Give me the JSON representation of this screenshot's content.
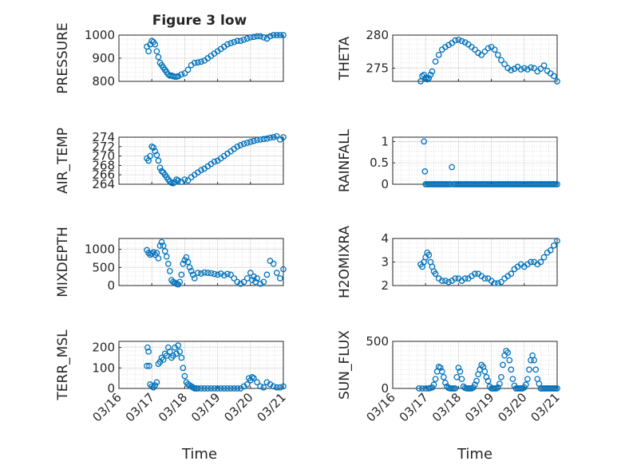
{
  "figure": {
    "title": "Figure 3 low",
    "xlabel": "Time",
    "marker_color": "#0072bd"
  },
  "chart_data": [
    {
      "type": "scatter",
      "name": "pressure-chart",
      "ylabel": "PRESSURE",
      "xlim": [
        0,
        5
      ],
      "ylim": [
        800,
        1000
      ],
      "yticks": [
        800,
        900,
        1000
      ],
      "ytick_labels": [
        "800",
        "900",
        "1000"
      ],
      "xticks": [
        0,
        1,
        2,
        3,
        4,
        5
      ],
      "xtick_labels": [],
      "grid": true,
      "x": [
        0.85,
        0.9,
        0.95,
        1.0,
        1.05,
        1.1,
        1.15,
        1.2,
        1.25,
        1.3,
        1.35,
        1.4,
        1.45,
        1.5,
        1.55,
        1.6,
        1.65,
        1.7,
        1.75,
        1.8,
        1.9,
        2.0,
        2.1,
        2.2,
        2.3,
        2.4,
        2.5,
        2.6,
        2.7,
        2.8,
        2.9,
        3.0,
        3.1,
        3.2,
        3.3,
        3.4,
        3.5,
        3.6,
        3.7,
        3.8,
        3.9,
        4.0,
        4.1,
        4.2,
        4.3,
        4.4,
        4.5,
        4.6,
        4.7,
        4.8,
        4.9,
        5.0
      ],
      "y": [
        950,
        930,
        960,
        975,
        970,
        960,
        930,
        905,
        880,
        870,
        860,
        850,
        840,
        830,
        825,
        825,
        822,
        820,
        820,
        822,
        830,
        835,
        850,
        870,
        880,
        882,
        885,
        890,
        900,
        910,
        920,
        930,
        940,
        950,
        960,
        965,
        970,
        975,
        975,
        980,
        985,
        990,
        992,
        995,
        995,
        990,
        985,
        995,
        1000,
        1000,
        1000,
        1000
      ]
    },
    {
      "type": "scatter",
      "name": "theta-chart",
      "ylabel": "THETA",
      "xlim": [
        0,
        5
      ],
      "ylim": [
        273,
        280
      ],
      "yticks": [
        275,
        280
      ],
      "ytick_labels": [
        "275",
        "280"
      ],
      "xticks": [
        0,
        1,
        2,
        3,
        4,
        5
      ],
      "xtick_labels": [],
      "grid": true,
      "x": [
        0.85,
        0.9,
        0.95,
        1.0,
        1.05,
        1.1,
        1.15,
        1.2,
        1.3,
        1.4,
        1.5,
        1.6,
        1.7,
        1.8,
        1.9,
        2.0,
        2.1,
        2.2,
        2.3,
        2.4,
        2.5,
        2.6,
        2.7,
        2.8,
        2.9,
        3.0,
        3.1,
        3.2,
        3.3,
        3.4,
        3.5,
        3.6,
        3.7,
        3.8,
        3.9,
        4.0,
        4.1,
        4.2,
        4.3,
        4.4,
        4.5,
        4.6,
        4.7,
        4.8,
        4.9,
        5.0
      ],
      "y": [
        273.0,
        273.8,
        274.0,
        273.5,
        273.3,
        273.5,
        274.0,
        274.5,
        276.0,
        277.0,
        277.8,
        278.2,
        278.5,
        278.8,
        279.2,
        279.3,
        279.1,
        278.9,
        278.6,
        278.2,
        277.8,
        277.3,
        277.0,
        277.5,
        278.0,
        278.2,
        277.8,
        277.0,
        276.2,
        275.6,
        275.0,
        274.7,
        274.9,
        275.2,
        274.8,
        275.0,
        274.8,
        275.1,
        275.0,
        274.5,
        274.9,
        275.4,
        274.6,
        274.2,
        273.8,
        273.0
      ]
    },
    {
      "type": "scatter",
      "name": "air-temp-chart",
      "ylabel": "AIR_TEMP",
      "xlim": [
        0,
        5
      ],
      "ylim": [
        264,
        274
      ],
      "yticks": [
        264,
        266,
        268,
        270,
        272,
        274
      ],
      "ytick_labels": [
        "264",
        "266",
        "268",
        "270",
        "272",
        "274"
      ],
      "xticks": [
        0,
        1,
        2,
        3,
        4,
        5
      ],
      "xtick_labels": [],
      "grid": true,
      "x": [
        0.85,
        0.9,
        0.95,
        1.0,
        1.05,
        1.1,
        1.15,
        1.2,
        1.25,
        1.3,
        1.35,
        1.4,
        1.45,
        1.5,
        1.55,
        1.6,
        1.65,
        1.7,
        1.75,
        1.8,
        1.9,
        2.0,
        2.1,
        2.2,
        2.3,
        2.4,
        2.5,
        2.6,
        2.7,
        2.8,
        2.9,
        3.0,
        3.1,
        3.2,
        3.3,
        3.4,
        3.5,
        3.6,
        3.7,
        3.8,
        3.9,
        4.0,
        4.1,
        4.2,
        4.3,
        4.4,
        4.5,
        4.6,
        4.7,
        4.8,
        4.9,
        5.0
      ],
      "y": [
        269.5,
        269.0,
        270.0,
        272.0,
        271.8,
        271.0,
        270.2,
        269.0,
        267.5,
        266.8,
        266.5,
        266.0,
        265.5,
        265.0,
        264.6,
        264.3,
        264.2,
        264.5,
        265.0,
        264.8,
        264.5,
        265.0,
        264.8,
        265.5,
        266.0,
        266.5,
        267.0,
        267.3,
        267.8,
        268.3,
        268.8,
        269.0,
        269.5,
        270.0,
        270.5,
        271.0,
        271.5,
        272.0,
        272.3,
        272.6,
        272.8,
        273.0,
        273.2,
        273.4,
        273.5,
        273.6,
        273.7,
        273.9,
        274.0,
        274.2,
        273.5,
        274.0
      ]
    },
    {
      "type": "scatter",
      "name": "rainfall-chart",
      "ylabel": "RAINFALL",
      "xlim": [
        0,
        5
      ],
      "ylim": [
        0,
        1.1
      ],
      "yticks": [
        0,
        0.5,
        1
      ],
      "ytick_labels": [
        "0",
        "0.5",
        "1"
      ],
      "xticks": [
        0,
        1,
        2,
        3,
        4,
        5
      ],
      "xtick_labels": [],
      "grid": true,
      "x": [
        0.95,
        0.98,
        1.0,
        1.05,
        1.1,
        1.15,
        1.2,
        1.25,
        1.3,
        1.35,
        1.4,
        1.45,
        1.5,
        1.55,
        1.6,
        1.65,
        1.7,
        1.75,
        1.8,
        1.85,
        1.9,
        1.95,
        2.0,
        2.05,
        2.1,
        2.15,
        2.2,
        2.25,
        2.3,
        2.35,
        2.4,
        2.45,
        2.5,
        2.55,
        2.6,
        2.65,
        2.7,
        2.75,
        2.8,
        2.85,
        2.9,
        2.95,
        3.0,
        3.05,
        3.1,
        3.15,
        3.2,
        3.25,
        3.3,
        3.35,
        3.4,
        3.45,
        3.5,
        3.55,
        3.6,
        3.65,
        3.7,
        3.75,
        3.8,
        3.85,
        3.9,
        3.95,
        4.0,
        4.05,
        4.1,
        4.15,
        4.2,
        4.25,
        4.3,
        4.35,
        4.4,
        4.45,
        4.5,
        4.55,
        4.6,
        4.65,
        4.7,
        4.75,
        4.8,
        4.85,
        4.9,
        4.95,
        5.0
      ],
      "y": [
        1.0,
        0.3,
        0,
        0,
        0,
        0,
        0,
        0,
        0,
        0,
        0,
        0,
        0,
        0,
        0,
        0,
        0,
        0,
        0.4,
        0,
        0,
        0,
        0,
        0,
        0,
        0,
        0,
        0,
        0,
        0,
        0,
        0,
        0,
        0,
        0,
        0,
        0,
        0,
        0,
        0,
        0,
        0,
        0,
        0,
        0,
        0,
        0,
        0,
        0,
        0,
        0,
        0,
        0,
        0,
        0,
        0,
        0,
        0,
        0,
        0,
        0,
        0,
        0,
        0,
        0,
        0,
        0,
        0,
        0,
        0,
        0,
        0,
        0,
        0,
        0,
        0,
        0,
        0,
        0,
        0,
        0,
        0,
        0
      ]
    },
    {
      "type": "scatter",
      "name": "mixdepth-chart",
      "ylabel": "MIXDEPTH",
      "xlim": [
        0,
        5
      ],
      "ylim": [
        0,
        1300
      ],
      "yticks": [
        0,
        500,
        1000
      ],
      "ytick_labels": [
        "0",
        "500",
        "1000"
      ],
      "xticks": [
        0,
        1,
        2,
        3,
        4,
        5
      ],
      "xtick_labels": [],
      "grid": true,
      "x": [
        0.85,
        0.9,
        0.95,
        1.0,
        1.05,
        1.1,
        1.15,
        1.2,
        1.25,
        1.3,
        1.35,
        1.4,
        1.45,
        1.5,
        1.55,
        1.6,
        1.65,
        1.7,
        1.75,
        1.8,
        1.85,
        1.9,
        1.95,
        2.0,
        2.05,
        2.1,
        2.15,
        2.2,
        2.25,
        2.3,
        2.4,
        2.5,
        2.6,
        2.7,
        2.8,
        2.9,
        3.0,
        3.1,
        3.2,
        3.3,
        3.4,
        3.5,
        3.6,
        3.7,
        3.8,
        3.9,
        4.0,
        4.05,
        4.1,
        4.15,
        4.2,
        4.3,
        4.4,
        4.5,
        4.6,
        4.7,
        4.8,
        4.9,
        5.0
      ],
      "y": [
        980,
        900,
        850,
        880,
        920,
        850,
        900,
        750,
        1100,
        1200,
        1100,
        950,
        800,
        600,
        400,
        150,
        100,
        80,
        50,
        30,
        100,
        300,
        600,
        700,
        780,
        650,
        500,
        400,
        300,
        200,
        350,
        330,
        360,
        350,
        340,
        320,
        300,
        330,
        280,
        320,
        300,
        200,
        100,
        50,
        100,
        200,
        350,
        150,
        250,
        100,
        200,
        50,
        100,
        300,
        680,
        600,
        350,
        200,
        450
      ]
    },
    {
      "type": "scatter",
      "name": "h2o-mixratio-chart",
      "ylabel": "H2OMIXRA",
      "xlim": [
        0,
        5
      ],
      "ylim": [
        2,
        4
      ],
      "yticks": [
        2,
        3,
        4
      ],
      "ytick_labels": [
        "2",
        "3",
        "4"
      ],
      "xticks": [
        0,
        1,
        2,
        3,
        4,
        5
      ],
      "xtick_labels": [],
      "grid": true,
      "x": [
        0.85,
        0.9,
        0.95,
        1.0,
        1.05,
        1.1,
        1.15,
        1.2,
        1.25,
        1.3,
        1.4,
        1.5,
        1.6,
        1.7,
        1.8,
        1.9,
        2.0,
        2.1,
        2.2,
        2.3,
        2.4,
        2.5,
        2.6,
        2.7,
        2.8,
        2.9,
        3.0,
        3.1,
        3.2,
        3.3,
        3.4,
        3.5,
        3.6,
        3.7,
        3.8,
        3.9,
        4.0,
        4.1,
        4.2,
        4.3,
        4.4,
        4.5,
        4.6,
        4.7,
        4.8,
        4.9,
        5.0
      ],
      "y": [
        2.9,
        2.8,
        3.0,
        3.2,
        3.4,
        3.3,
        3.0,
        2.8,
        2.6,
        2.5,
        2.3,
        2.2,
        2.2,
        2.15,
        2.2,
        2.3,
        2.3,
        2.2,
        2.3,
        2.3,
        2.4,
        2.5,
        2.5,
        2.4,
        2.3,
        2.3,
        2.2,
        2.1,
        2.1,
        2.15,
        2.3,
        2.4,
        2.5,
        2.7,
        2.8,
        2.9,
        2.8,
        2.9,
        3.0,
        3.0,
        2.9,
        3.0,
        3.2,
        3.4,
        3.5,
        3.7,
        3.9
      ]
    },
    {
      "type": "scatter",
      "name": "terr-msl-chart",
      "ylabel": "TERR_MSL",
      "xlim": [
        0,
        5
      ],
      "ylim": [
        0,
        230
      ],
      "yticks": [
        0,
        100,
        200
      ],
      "ytick_labels": [
        "0",
        "100",
        "200"
      ],
      "xticks": [
        0,
        1,
        2,
        3,
        4,
        5
      ],
      "xtick_labels": [
        "03/16",
        "03/17",
        "03/18",
        "03/19",
        "03/20",
        "03/21"
      ],
      "grid": true,
      "x": [
        0.85,
        0.87,
        0.9,
        0.92,
        0.95,
        1.0,
        1.05,
        1.1,
        1.15,
        1.2,
        1.25,
        1.3,
        1.35,
        1.4,
        1.45,
        1.5,
        1.55,
        1.6,
        1.65,
        1.7,
        1.75,
        1.8,
        1.85,
        1.9,
        1.95,
        2.0,
        2.05,
        2.1,
        2.15,
        2.2,
        2.25,
        2.3,
        2.35,
        2.4,
        2.5,
        2.6,
        2.7,
        2.8,
        2.9,
        3.0,
        3.1,
        3.2,
        3.3,
        3.4,
        3.5,
        3.6,
        3.7,
        3.8,
        3.9,
        3.95,
        4.0,
        4.05,
        4.1,
        4.2,
        4.3,
        4.4,
        4.5,
        4.6,
        4.7,
        4.8,
        4.9,
        5.0
      ],
      "y": [
        110,
        200,
        180,
        110,
        20,
        10,
        5,
        15,
        30,
        120,
        130,
        150,
        140,
        170,
        160,
        200,
        180,
        150,
        160,
        200,
        170,
        210,
        180,
        150,
        100,
        60,
        30,
        20,
        15,
        10,
        5,
        0,
        0,
        0,
        0,
        0,
        0,
        0,
        0,
        0,
        0,
        0,
        0,
        0,
        0,
        0,
        0,
        10,
        20,
        50,
        40,
        55,
        50,
        30,
        10,
        5,
        30,
        20,
        10,
        5,
        5,
        10
      ]
    },
    {
      "type": "scatter",
      "name": "sun-flux-chart",
      "ylabel": "SUN_FLUX",
      "xlim": [
        0,
        5
      ],
      "ylim": [
        0,
        500
      ],
      "yticks": [
        0,
        500
      ],
      "ytick_labels": [
        "0",
        "500"
      ],
      "xticks": [
        0,
        1,
        2,
        3,
        4,
        5
      ],
      "xtick_labels": [
        "03/16",
        "03/17",
        "03/18",
        "03/19",
        "03/20",
        "03/21"
      ],
      "grid": true,
      "x": [
        0.8,
        0.9,
        1.0,
        1.1,
        1.15,
        1.2,
        1.25,
        1.3,
        1.35,
        1.4,
        1.45,
        1.5,
        1.55,
        1.6,
        1.65,
        1.7,
        1.75,
        1.8,
        1.85,
        1.9,
        1.95,
        2.0,
        2.05,
        2.1,
        2.15,
        2.2,
        2.25,
        2.3,
        2.35,
        2.4,
        2.45,
        2.5,
        2.55,
        2.6,
        2.65,
        2.7,
        2.75,
        2.8,
        2.85,
        2.9,
        2.95,
        3.0,
        3.05,
        3.1,
        3.15,
        3.2,
        3.25,
        3.3,
        3.35,
        3.4,
        3.45,
        3.5,
        3.55,
        3.6,
        3.65,
        3.7,
        3.75,
        3.8,
        3.85,
        3.9,
        3.95,
        4.0,
        4.05,
        4.1,
        4.15,
        4.2,
        4.25,
        4.3,
        4.35,
        4.4,
        4.45,
        4.5,
        4.55,
        4.6,
        4.65,
        4.7,
        4.75,
        4.8,
        4.85,
        4.9,
        4.95,
        5.0
      ],
      "y": [
        0,
        0,
        0,
        0,
        5,
        10,
        40,
        100,
        180,
        230,
        220,
        180,
        120,
        60,
        20,
        5,
        0,
        0,
        0,
        0,
        120,
        220,
        180,
        100,
        20,
        5,
        0,
        0,
        0,
        0,
        10,
        40,
        80,
        150,
        200,
        250,
        230,
        180,
        120,
        80,
        20,
        0,
        0,
        0,
        0,
        10,
        50,
        120,
        250,
        350,
        400,
        380,
        300,
        200,
        100,
        30,
        0,
        0,
        0,
        0,
        0,
        10,
        40,
        100,
        200,
        300,
        350,
        300,
        200,
        100,
        50,
        0,
        0,
        0,
        0,
        0,
        0,
        0,
        0,
        0,
        0,
        0
      ]
    }
  ]
}
